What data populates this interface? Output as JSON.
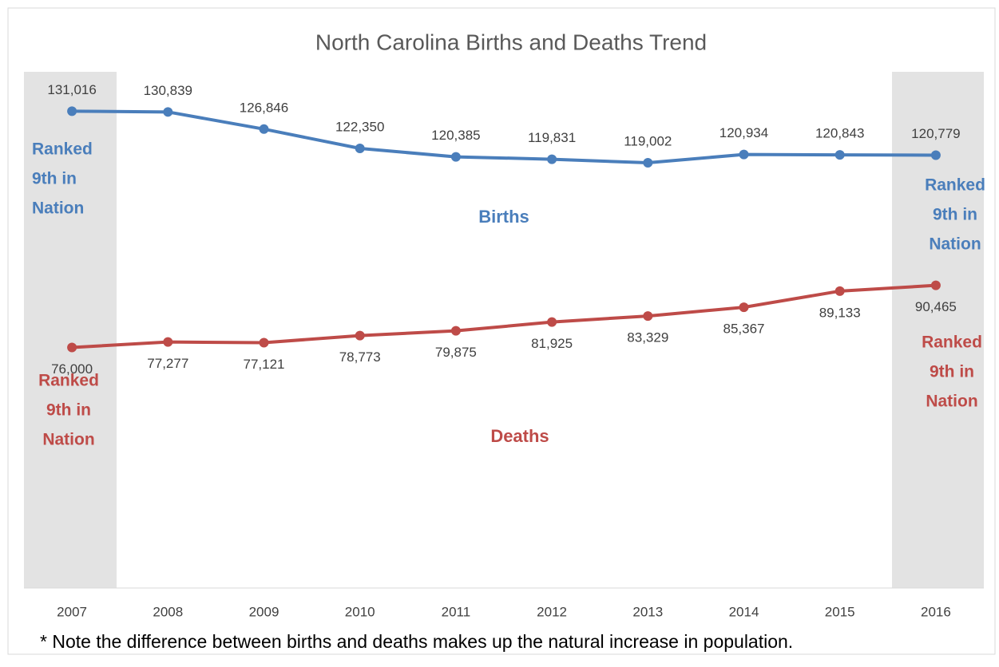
{
  "chart_data": {
    "type": "line",
    "title": "North Carolina Births and Deaths Trend",
    "categories": [
      "2007",
      "2008",
      "2009",
      "2010",
      "2011",
      "2012",
      "2013",
      "2014",
      "2015",
      "2016"
    ],
    "ylim": [
      20000,
      140000
    ],
    "series": [
      {
        "name": "Births",
        "color": "#4a7ebb",
        "values": [
          131016,
          130839,
          126846,
          122350,
          120385,
          119831,
          119002,
          120934,
          120843,
          120779
        ],
        "value_labels": [
          "131,016",
          "130,839",
          "126,846",
          "122,350",
          "120,385",
          "119,831",
          "119,002",
          "120,934",
          "120,843",
          "120,779"
        ]
      },
      {
        "name": "Deaths",
        "color": "#be4b48",
        "values": [
          76000,
          77277,
          77121,
          78773,
          79875,
          81925,
          83329,
          85367,
          89133,
          90465
        ],
        "value_labels": [
          "76,000",
          "77,277",
          "77,121",
          "78,773",
          "79,875",
          "81,925",
          "83,329",
          "85,367",
          "89,133",
          "90,465"
        ]
      }
    ],
    "annotations": [
      {
        "lines": [
          "Ranked",
          "9th in",
          "Nation"
        ],
        "color": "#4a7ebb"
      },
      {
        "lines": [
          "Ranked",
          "9th in",
          "Nation"
        ],
        "color": "#4a7ebb"
      },
      {
        "lines": [
          "Ranked",
          "9th in",
          "Nation"
        ],
        "color": "#be4b48"
      },
      {
        "lines": [
          "Ranked",
          "9th in",
          "Nation"
        ],
        "color": "#be4b48"
      }
    ],
    "note": "* Note the difference between births and deaths makes up the natural increase in population."
  }
}
